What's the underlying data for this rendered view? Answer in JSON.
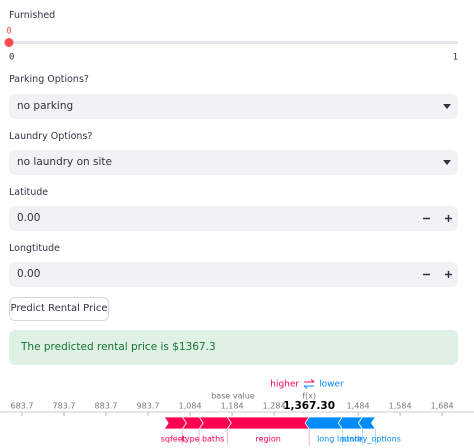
{
  "form": {
    "furnished": {
      "label": "Furnished",
      "min": 0,
      "max": 1,
      "value": 0
    },
    "parking": {
      "label": "Parking Options?",
      "value": "no parking"
    },
    "laundry": {
      "label": "Laundry Options?",
      "value": "no laundry on site"
    },
    "latitude": {
      "label": "Latitude",
      "value": "0.00"
    },
    "longitude": {
      "label": "Longtitude",
      "value": "0.00"
    },
    "button": "Predict Rental Price",
    "result": "The predicted rental price is $1367.3"
  },
  "chart_data": {
    "type": "force",
    "higher_label": "higher",
    "lower_label": "lower",
    "base_value_label": "base value",
    "base_value": 1186,
    "output_name": "f(x)",
    "output_value": {
      "value": 1367.3,
      "label": "1,367.30"
    },
    "xlim": [
      631.3,
      1759.9
    ],
    "xticks": [
      {
        "value": 683.7,
        "label": "683.7"
      },
      {
        "value": 783.7,
        "label": "783.7"
      },
      {
        "value": 883.7,
        "label": "883.7"
      },
      {
        "value": 983.7,
        "label": "983.7"
      },
      {
        "value": 1084,
        "label": "1,084"
      },
      {
        "value": 1184,
        "label": "1,184"
      },
      {
        "value": 1284,
        "label": "1,284"
      },
      {
        "value": 1484,
        "label": "1,484"
      },
      {
        "value": 1584,
        "label": "1,584"
      },
      {
        "value": 1684,
        "label": "1,684"
      }
    ],
    "higher_color": "#ff0051",
    "lower_color": "#008bfb",
    "features": [
      {
        "name": "region",
        "direction": "higher",
        "effect": 195
      },
      {
        "name": "baths",
        "direction": "higher",
        "effect": 67
      },
      {
        "name": "type",
        "direction": "higher",
        "effect": 40
      },
      {
        "name": "sqfeet",
        "direction": "higher",
        "effect": 43
      },
      {
        "name": "long",
        "direction": "lower",
        "effect": 79
      },
      {
        "name": "state",
        "direction": "lower",
        "effect": 48
      },
      {
        "name": "laundry_options",
        "direction": "lower",
        "effect": 31
      }
    ]
  }
}
